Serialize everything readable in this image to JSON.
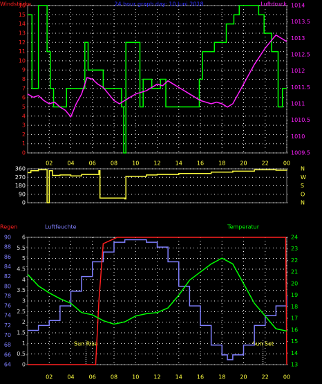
{
  "chart_data": [
    {
      "type": "line",
      "title": "24 hour graph day: 10 Juni 2018",
      "grid": true,
      "xlim": [
        0,
        24
      ],
      "xticks": [
        {
          "value": 2,
          "label": "02"
        },
        {
          "value": 4,
          "label": "04"
        },
        {
          "value": 6,
          "label": "06"
        },
        {
          "value": 8,
          "label": "08"
        },
        10,
        12,
        14,
        16,
        18,
        20,
        22,
        {
          "value": 24,
          "label": "00"
        }
      ],
      "axes": [
        {
          "label": "Windstärke",
          "side": "left",
          "color": "#ff2020",
          "lim": [
            0,
            16
          ],
          "ticks": [
            0,
            1,
            2,
            3,
            4,
            5,
            6,
            7,
            8,
            9,
            10,
            11,
            12,
            13,
            14,
            15,
            16
          ]
        },
        {
          "label": "Luftdruck",
          "side": "right",
          "color": "#ff20ff",
          "lim": [
            1009.5,
            1014
          ],
          "ticks": [
            1009.5,
            1010,
            1010.5,
            1011,
            1011.5,
            1012,
            1012.5,
            1013,
            1013.5,
            1014
          ]
        }
      ],
      "series": [
        {
          "axis": 0,
          "color": "#00ff00",
          "step": true,
          "x": [
            0,
            0.4,
            1.0,
            1.8,
            2.1,
            2.4,
            3.6,
            5.3,
            5.6,
            6.3,
            7.0,
            8.7,
            8.9,
            9.1,
            10.4,
            10.7,
            11.5,
            12.3,
            12.8,
            14.3,
            15.9,
            16.2,
            17.3,
            18.4,
            19.1,
            19.6,
            20.5,
            21.4,
            21.9,
            22.6,
            23.2,
            23.6,
            24
          ],
          "values": [
            15,
            7,
            16,
            11,
            7,
            5,
            7,
            12,
            9,
            9,
            7,
            5,
            0,
            12,
            5,
            8,
            7,
            8,
            5,
            5,
            8,
            11,
            12,
            14,
            15,
            16,
            16,
            15,
            13,
            11,
            5,
            7,
            7
          ]
        },
        {
          "axis": 1,
          "color": "#ff20ff",
          "x": [
            0,
            0.5,
            1,
            1.5,
            2,
            2.5,
            3,
            3.5,
            4,
            4.5,
            5,
            5.5,
            6,
            6.5,
            7,
            7.5,
            8,
            8.5,
            9,
            9.5,
            10,
            11,
            12,
            12.5,
            13,
            14,
            15,
            16,
            17,
            17.5,
            18,
            18.5,
            19,
            19.5,
            20,
            21,
            22,
            22.5,
            23,
            23.5,
            24
          ],
          "values": [
            1011.3,
            1011.2,
            1011.25,
            1011.1,
            1011.0,
            1011.05,
            1010.9,
            1010.8,
            1010.6,
            1011.0,
            1011.3,
            1011.8,
            1011.75,
            1011.6,
            1011.5,
            1011.3,
            1011.1,
            1011.0,
            1011.1,
            1011.2,
            1011.3,
            1011.4,
            1011.6,
            1011.55,
            1011.7,
            1011.5,
            1011.3,
            1011.1,
            1011.0,
            1011.05,
            1011.0,
            1010.9,
            1011.0,
            1011.3,
            1011.6,
            1012.2,
            1012.7,
            1012.9,
            1013.1,
            1013.0,
            1012.9
          ]
        }
      ]
    },
    {
      "type": "line",
      "grid": true,
      "xlim": [
        0,
        24
      ],
      "axes": [
        {
          "side": "left",
          "color": "#ffffff",
          "lim": [
            0,
            360
          ],
          "ticks": [
            0,
            90,
            180,
            270,
            360
          ]
        },
        {
          "side": "right",
          "color": "#ffff40",
          "lim": [
            0,
            360
          ],
          "ticks": [
            {
              "value": 360,
              "label": "N"
            },
            {
              "value": 270,
              "label": "W"
            },
            {
              "value": 180,
              "label": "S"
            },
            {
              "value": 90,
              "label": "O"
            },
            {
              "value": 0,
              "label": "N"
            }
          ]
        }
      ],
      "series": [
        {
          "axis": 0,
          "color": "#ffff40",
          "step": true,
          "x": [
            0,
            0.3,
            1.0,
            1.8,
            2.0,
            2.3,
            3.0,
            4.0,
            5.0,
            6.6,
            6.7,
            9.0,
            9.1,
            11.0,
            12.0,
            14.0,
            17.0,
            19.0,
            21.0,
            23.0,
            24
          ],
          "values": [
            320,
            340,
            350,
            0,
            340,
            290,
            295,
            285,
            300,
            340,
            50,
            40,
            280,
            295,
            300,
            310,
            325,
            335,
            350,
            345,
            340
          ]
        }
      ]
    },
    {
      "type": "line",
      "grid": true,
      "xlim": [
        0,
        24
      ],
      "xticks": [
        {
          "value": 2,
          "label": "02"
        },
        {
          "value": 4,
          "label": "04"
        },
        {
          "value": 6,
          "label": "06"
        },
        {
          "value": 8,
          "label": "08"
        },
        10,
        12,
        14,
        16,
        18,
        20,
        22,
        {
          "value": 24,
          "label": "00"
        }
      ],
      "axes": [
        {
          "label": "Regen",
          "side": "left",
          "color": "#ff2020",
          "tickcolor": "#dddddd",
          "lim": [
            0,
            6
          ],
          "ticks": [
            0,
            0.5,
            1,
            1.5,
            2,
            2.5,
            3,
            3.5,
            4,
            4.5,
            5,
            5.5,
            6
          ]
        },
        {
          "label": "Luftfeuchte",
          "side": "left",
          "color": "#8080ff",
          "lim": [
            64,
            90
          ],
          "ticks": [
            64,
            66,
            68,
            70,
            72,
            74,
            76,
            78,
            80,
            82,
            84,
            86,
            88,
            90
          ]
        },
        {
          "label": "Temperatur",
          "side": "right",
          "color": "#00ff00",
          "lim": [
            13,
            24
          ],
          "ticks": [
            13,
            14,
            15,
            16,
            17,
            18,
            19,
            20,
            21,
            22,
            23,
            24
          ]
        }
      ],
      "annotations": [
        {
          "text": "Sun Rise",
          "x": 5.4
        },
        {
          "text": "Sun Set",
          "x": 21.8
        }
      ],
      "series": [
        {
          "axis": 1,
          "color": "#8080ff",
          "step": true,
          "x": [
            0,
            1,
            2,
            3,
            4,
            5,
            6,
            7,
            8,
            9,
            10,
            11,
            12,
            13,
            14,
            15,
            16,
            17,
            18,
            18.5,
            19,
            20,
            21,
            22,
            23,
            24
          ],
          "values": [
            71,
            72,
            73,
            76,
            79,
            82,
            85,
            87,
            89,
            89.5,
            89.5,
            89,
            88,
            85,
            80,
            76,
            72,
            68,
            66,
            65,
            66,
            68,
            72,
            74,
            76,
            78
          ]
        },
        {
          "axis": 0,
          "color": "#ff2020",
          "x": [
            0,
            6.3,
            6.6,
            7,
            8.3,
            23.9,
            24
          ],
          "values": [
            0,
            0,
            3,
            5.7,
            6,
            6,
            0
          ]
        },
        {
          "axis": 2,
          "color": "#00ff00",
          "x": [
            0,
            1,
            2,
            3,
            4,
            5,
            6,
            7,
            8,
            9,
            10,
            11,
            12,
            13,
            14,
            15,
            16,
            17,
            18,
            19,
            20,
            21,
            22,
            23,
            24
          ],
          "values": [
            20.8,
            19.8,
            19.2,
            18.7,
            18.3,
            17.5,
            17.3,
            16.8,
            16.5,
            16.7,
            17.2,
            17.4,
            17.5,
            17.9,
            19.0,
            20.3,
            21.0,
            21.7,
            22.2,
            21.7,
            20.0,
            18.3,
            17.2,
            16.1,
            15.9
          ]
        }
      ]
    }
  ]
}
